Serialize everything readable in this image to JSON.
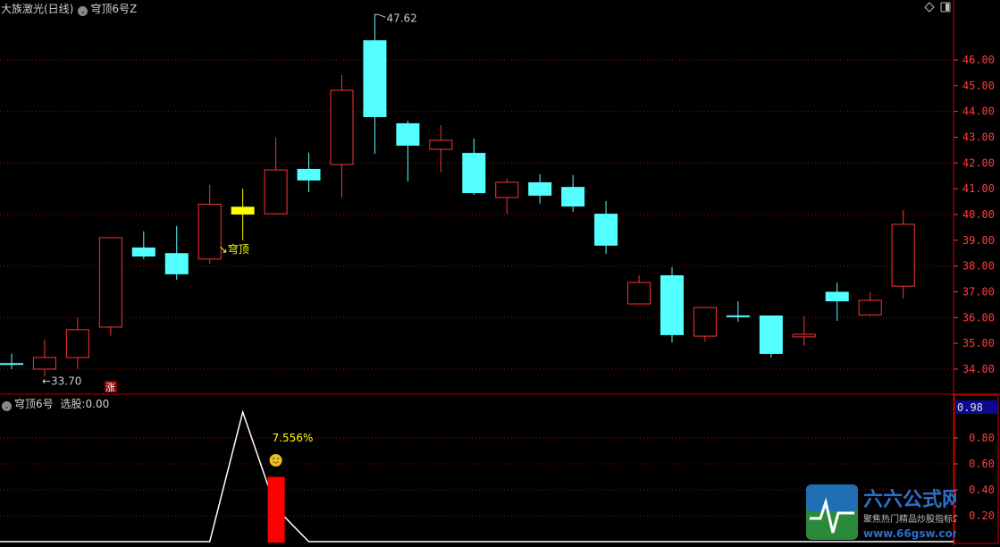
{
  "header": {
    "stock_title": "大族激光(日线)",
    "indicator_name": "穹顶6号Z"
  },
  "sub_header": {
    "indicator_name": "穹顶6号",
    "select_label": "选股:",
    "select_value": "0.00"
  },
  "colors": {
    "up": "#ff3232",
    "down": "#54ffff",
    "signal": "#ffff00",
    "grid": "#b00000",
    "axis": "#ff3c3c",
    "indicator_bar": "#ff0000",
    "indicator_line": "#ffffff",
    "value_badge_bg": "#0a0a8c"
  },
  "chart_data": [
    {
      "type": "candlestick",
      "ylim": [
        33.5,
        47.8
      ],
      "yticks": [
        "34.00",
        "35.00",
        "36.00",
        "37.00",
        "38.00",
        "39.00",
        "40.00",
        "41.00",
        "42.00",
        "43.00",
        "44.00",
        "45.00",
        "46.00"
      ],
      "grid": "dotted, every 2.00",
      "ohlc": [
        [
          34.2,
          34.6,
          34.0,
          34.2
        ],
        [
          34.0,
          35.15,
          33.7,
          34.45
        ],
        [
          34.45,
          36.0,
          34.0,
          35.53
        ],
        [
          35.63,
          39.1,
          35.3,
          39.1
        ],
        [
          38.72,
          39.35,
          38.27,
          38.37
        ],
        [
          38.5,
          39.55,
          37.47,
          37.68
        ],
        [
          38.27,
          41.15,
          38.1,
          40.4
        ],
        [
          40.3,
          41.0,
          39.0,
          40.0
        ],
        [
          40.03,
          42.98,
          40.03,
          41.73
        ],
        [
          41.77,
          42.4,
          40.87,
          41.32
        ],
        [
          41.94,
          45.41,
          40.66,
          44.82
        ],
        [
          46.76,
          47.62,
          42.36,
          43.78
        ],
        [
          43.54,
          43.64,
          41.28,
          42.67
        ],
        [
          42.53,
          43.47,
          41.63,
          42.88
        ],
        [
          42.39,
          42.95,
          40.76,
          40.83
        ],
        [
          40.66,
          41.39,
          40.03,
          41.25
        ],
        [
          41.25,
          41.56,
          40.42,
          40.73
        ],
        [
          41.07,
          41.53,
          40.1,
          40.31
        ],
        [
          40.03,
          40.52,
          38.47,
          38.79
        ],
        [
          36.53,
          37.64,
          36.53,
          37.36
        ],
        [
          37.64,
          37.95,
          35.04,
          35.32
        ],
        [
          35.28,
          36.39,
          35.07,
          36.39
        ],
        [
          36.05,
          36.63,
          35.84,
          36.05
        ],
        [
          36.08,
          36.08,
          34.45,
          34.59
        ],
        [
          35.25,
          36.05,
          34.9,
          35.35
        ],
        [
          37.0,
          37.36,
          35.87,
          36.63
        ],
        [
          36.1,
          36.98,
          36.05,
          36.67
        ],
        [
          37.22,
          40.17,
          36.74,
          39.62
        ]
      ],
      "signal_index": 7,
      "annotations": {
        "high_label": "47.62",
        "low_label": "33.70",
        "signal_label": "穹顶",
        "badge": "涨"
      }
    },
    {
      "type": "line+bar",
      "ylim": [
        0,
        1
      ],
      "yticks": [
        "0.20",
        "0.40",
        "0.60",
        "0.80"
      ],
      "current_value": "0.98",
      "line": [
        0,
        0,
        0,
        0,
        0,
        0,
        0,
        1,
        0.26,
        0,
        0,
        0,
        0,
        0,
        0,
        0,
        0,
        0,
        0,
        0,
        0,
        0,
        0,
        0,
        0,
        0,
        0,
        0
      ],
      "bar": {
        "index": 8,
        "value": 0.5
      },
      "bar_label": "7.556%",
      "icon": "smiley-icon"
    }
  ],
  "watermark": {
    "brand": "六六公式网",
    "slogan": "聚焦热门精品炒股指标公式",
    "url": "www.66gsw.com"
  }
}
